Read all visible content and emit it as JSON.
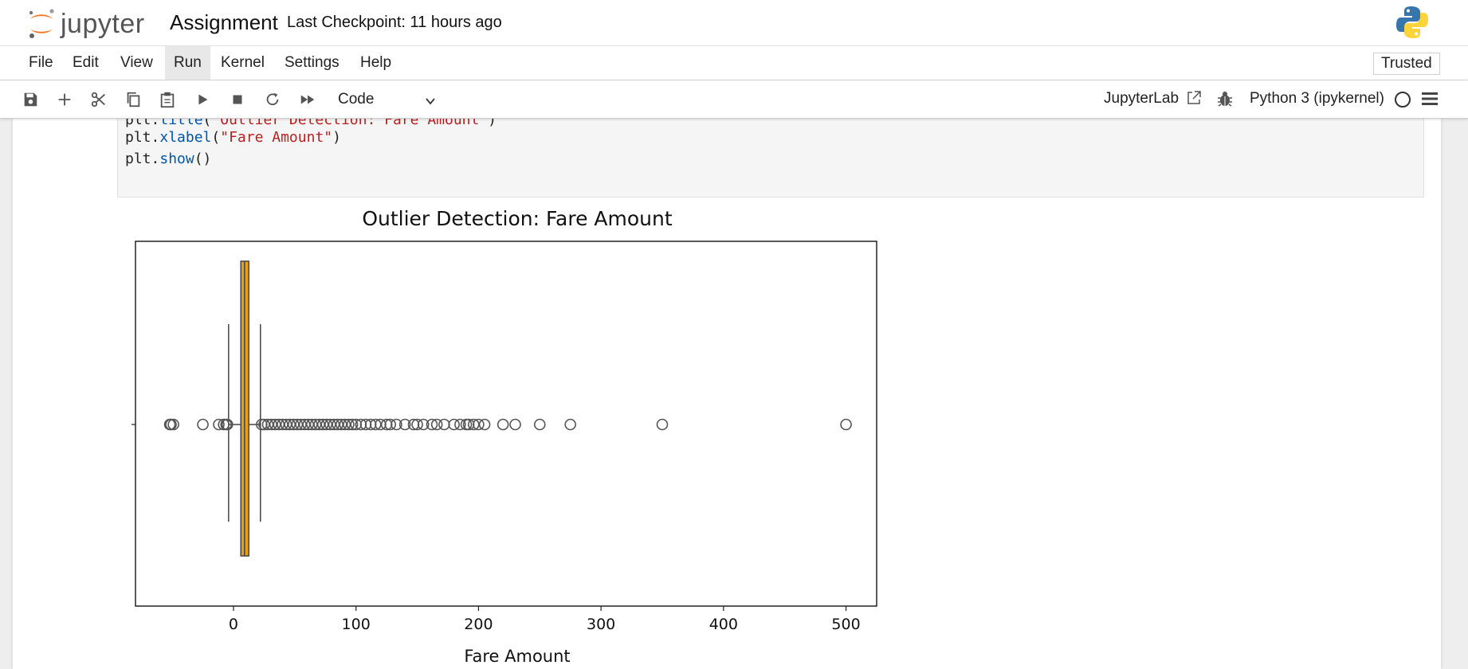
{
  "header": {
    "logo_text": "jupyter",
    "title": "Assignment",
    "checkpoint": "Last Checkpoint: 11 hours ago"
  },
  "menu": {
    "items": [
      "File",
      "Edit",
      "View",
      "Run",
      "Kernel",
      "Settings",
      "Help"
    ],
    "active": "Run",
    "trusted": "Trusted"
  },
  "toolbar": {
    "icons": [
      "save-icon",
      "add-cell-icon",
      "cut-icon",
      "copy-icon",
      "paste-icon",
      "run-icon",
      "stop-icon",
      "restart-icon",
      "fast-forward-icon"
    ],
    "cell_type": "Code",
    "jupyterlab_label": "JupyterLab",
    "kernel_label": "Python 3 (ipykernel)"
  },
  "code": {
    "line1_a": "plt.",
    "line1_fn": "title",
    "line1_b": "(",
    "line1_str": "\"Outlier Detection: Fare Amount\"",
    "line1_c": ")",
    "line2_a": "plt.",
    "line2_fn": "xlabel",
    "line2_b": "(",
    "line2_str": "\"Fare Amount\"",
    "line2_c": ")",
    "line3_a": "plt.",
    "line3_fn": "show",
    "line3_b": "()"
  },
  "colors": {
    "box_fill": "#e69f1a",
    "outlier_stroke": "#555555",
    "accent": "#f37726"
  },
  "chart_data": {
    "type": "box",
    "orientation": "horizontal",
    "title": "Outlier Detection: Fare Amount",
    "xlabel": "Fare Amount",
    "ylabel": "",
    "xlim": [
      -80,
      525
    ],
    "xticks": [
      0,
      100,
      200,
      300,
      400,
      500
    ],
    "grid": false,
    "box": {
      "q1": 6,
      "median": 9,
      "q3": 12.5,
      "whisker_low": -4,
      "whisker_high": 22
    },
    "outliers": [
      -52,
      -51,
      -49,
      -25,
      -12,
      -8,
      -6,
      -5,
      23,
      25,
      28,
      31,
      34,
      37,
      40,
      43,
      46,
      49,
      52,
      55,
      58,
      61,
      64,
      67,
      70,
      73,
      76,
      79,
      82,
      85,
      88,
      91,
      94,
      97,
      100,
      104,
      108,
      112,
      116,
      120,
      125,
      128,
      133,
      140,
      147,
      150,
      155,
      162,
      166,
      172,
      180,
      185,
      190,
      192,
      196,
      200,
      205,
      220,
      230,
      250,
      275,
      350,
      500
    ]
  }
}
